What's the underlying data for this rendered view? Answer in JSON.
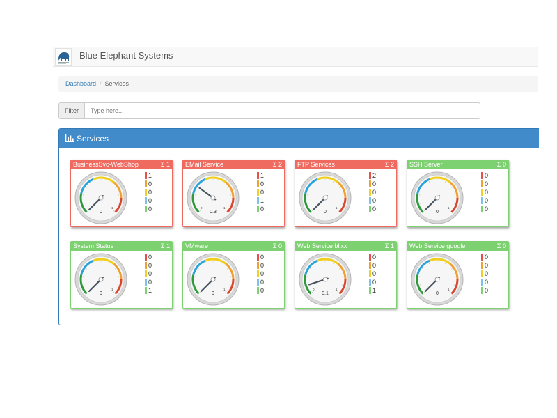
{
  "app": {
    "brand": "Blue Elephant Systems"
  },
  "breadcrumb": {
    "home": "Dashboard",
    "current": "Services"
  },
  "filter": {
    "label": "Filter",
    "placeholder": "Type here..."
  },
  "panel": {
    "title": "Services"
  },
  "colors": {
    "error": "#ef6a5f",
    "ok": "#7ed171",
    "critical": "#e55048",
    "warning": "#eea236",
    "unknown": "#f0d025",
    "pending": "#7cc3ec",
    "okbar": "#7ed171"
  },
  "tiles": [
    {
      "name": "BusinessSvc-WebShop",
      "sum": "Σ 1",
      "status": "error",
      "value": "0",
      "ticks": false,
      "needle": 0.0,
      "counts": [
        "1",
        "0",
        "0",
        "0",
        "0"
      ]
    },
    {
      "name": "EMail Service",
      "sum": "Σ 2",
      "status": "error",
      "value": "0.3",
      "ticks": true,
      "needle": 0.3,
      "counts": [
        "1",
        "0",
        "0",
        "1",
        "0"
      ]
    },
    {
      "name": "FTP Services",
      "sum": "Σ 2",
      "status": "error",
      "value": "0",
      "ticks": false,
      "needle": 0.0,
      "counts": [
        "2",
        "0",
        "0",
        "0",
        "0"
      ]
    },
    {
      "name": "SSH Server",
      "sum": "Σ 0",
      "status": "ok",
      "value": "0",
      "ticks": false,
      "needle": 0.0,
      "counts": [
        "0",
        "0",
        "0",
        "0",
        "0"
      ]
    },
    {
      "name": "System Status",
      "sum": "Σ 1",
      "status": "ok",
      "value": "0",
      "ticks": false,
      "needle": 0.0,
      "counts": [
        "0",
        "0",
        "0",
        "0",
        "1"
      ]
    },
    {
      "name": "VMware",
      "sum": "Σ 0",
      "status": "ok",
      "value": "0",
      "ticks": false,
      "needle": 0.0,
      "counts": [
        "0",
        "0",
        "0",
        "0",
        "0"
      ]
    },
    {
      "name": "Web Service blixx",
      "sum": "Σ 1",
      "status": "ok",
      "value": "0.1",
      "ticks": true,
      "needle": 0.1,
      "counts": [
        "0",
        "0",
        "0",
        "0",
        "1"
      ]
    },
    {
      "name": "Web Service google",
      "sum": "Σ 0",
      "status": "ok",
      "value": "0",
      "ticks": false,
      "needle": 0.0,
      "counts": [
        "0",
        "0",
        "0",
        "0",
        "0"
      ]
    }
  ]
}
